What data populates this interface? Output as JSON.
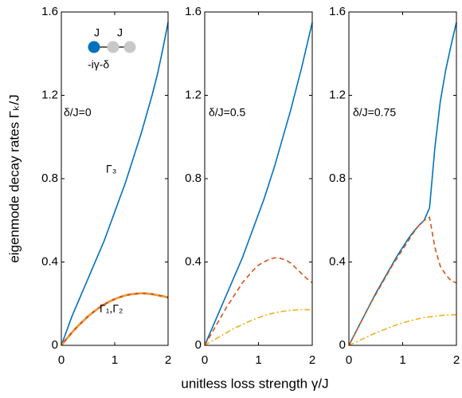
{
  "chart_data": [
    {
      "type": "line",
      "x": [
        0,
        0.1,
        0.2,
        0.3,
        0.4,
        0.5,
        0.6,
        0.7,
        0.8,
        0.9,
        1,
        1.1,
        1.2,
        1.3,
        1.4,
        1.5,
        1.6,
        1.7,
        1.8,
        1.9,
        2
      ],
      "series": [
        {
          "color": "#0072BD",
          "style": "solid",
          "values": [
            0,
            0.07,
            0.14,
            0.2,
            0.26,
            0.32,
            0.38,
            0.44,
            0.5,
            0.57,
            0.64,
            0.71,
            0.78,
            0.86,
            0.94,
            1.02,
            1.11,
            1.2,
            1.3,
            1.42,
            1.55
          ]
        },
        {
          "color": "#D95319",
          "style": "solid",
          "values": [
            0,
            0.032,
            0.062,
            0.09,
            0.115,
            0.139,
            0.16,
            0.179,
            0.196,
            0.21,
            0.222,
            0.232,
            0.24,
            0.245,
            0.248,
            0.25,
            0.249,
            0.246,
            0.241,
            0.236,
            0.23
          ]
        },
        {
          "color": "#EDB120",
          "style": "dashed",
          "values": [
            0,
            0.032,
            0.062,
            0.09,
            0.115,
            0.139,
            0.16,
            0.179,
            0.196,
            0.21,
            0.222,
            0.232,
            0.24,
            0.245,
            0.248,
            0.25,
            0.249,
            0.246,
            0.241,
            0.236,
            0.23
          ]
        }
      ],
      "annotations": [
        "J",
        "J",
        "-iγ-δ",
        "δ/J=0",
        "Γ₃",
        "Γ₁,Γ₂"
      ],
      "xlim": [
        0,
        2
      ],
      "ylim": [
        0,
        1.6
      ],
      "xticks": [
        0,
        1,
        2
      ],
      "yticks": [
        0,
        0.4,
        0.8,
        1.2,
        1.6
      ]
    },
    {
      "type": "line",
      "x": [
        0,
        0.1,
        0.2,
        0.3,
        0.4,
        0.5,
        0.6,
        0.7,
        0.8,
        0.9,
        1,
        1.1,
        1.2,
        1.3,
        1.4,
        1.5,
        1.6,
        1.7,
        1.8,
        1.9,
        2
      ],
      "series": [
        {
          "color": "#0072BD",
          "style": "solid",
          "values": [
            0,
            0.06,
            0.12,
            0.18,
            0.24,
            0.3,
            0.36,
            0.42,
            0.49,
            0.56,
            0.63,
            0.7,
            0.78,
            0.86,
            0.95,
            1.04,
            1.13,
            1.23,
            1.33,
            1.44,
            1.55
          ]
        },
        {
          "color": "#D95319",
          "style": "dashed",
          "values": [
            0,
            0.045,
            0.09,
            0.135,
            0.18,
            0.22,
            0.26,
            0.3,
            0.33,
            0.36,
            0.385,
            0.4,
            0.413,
            0.42,
            0.418,
            0.41,
            0.395,
            0.37,
            0.345,
            0.32,
            0.3
          ]
        },
        {
          "color": "#EDB120",
          "style": "dashdot",
          "values": [
            0,
            0.015,
            0.03,
            0.045,
            0.06,
            0.075,
            0.088,
            0.1,
            0.112,
            0.123,
            0.133,
            0.142,
            0.15,
            0.156,
            0.161,
            0.165,
            0.168,
            0.17,
            0.171,
            0.171,
            0.17
          ]
        }
      ],
      "annotations": [
        "δ/J=0.5"
      ],
      "xlim": [
        0,
        2
      ],
      "ylim": [
        0,
        1.6
      ],
      "xticks": [
        0,
        1,
        2
      ],
      "yticks": [
        0,
        0.4,
        0.8,
        1.2,
        1.6
      ]
    },
    {
      "type": "line",
      "x": [
        0,
        0.1,
        0.2,
        0.3,
        0.4,
        0.5,
        0.6,
        0.7,
        0.8,
        0.9,
        1,
        1.1,
        1.2,
        1.3,
        1.4,
        1.5,
        1.6,
        1.7,
        1.8,
        1.9,
        2
      ],
      "series": [
        {
          "color": "#0072BD",
          "style": "solid",
          "values": [
            0,
            0.05,
            0.1,
            0.15,
            0.2,
            0.25,
            0.295,
            0.34,
            0.385,
            0.43,
            0.47,
            0.51,
            0.545,
            0.575,
            0.6,
            0.66,
            0.95,
            1.17,
            1.32,
            1.44,
            1.55
          ]
        },
        {
          "color": "#D95319",
          "style": "dashed",
          "values": [
            0,
            0.05,
            0.1,
            0.15,
            0.2,
            0.245,
            0.29,
            0.335,
            0.38,
            0.42,
            0.46,
            0.5,
            0.54,
            0.575,
            0.6,
            0.615,
            0.47,
            0.38,
            0.34,
            0.31,
            0.3
          ]
        },
        {
          "color": "#EDB120",
          "style": "dashdot",
          "values": [
            0,
            0.012,
            0.024,
            0.036,
            0.048,
            0.06,
            0.07,
            0.08,
            0.09,
            0.1,
            0.108,
            0.115,
            0.122,
            0.128,
            0.133,
            0.137,
            0.14,
            0.143,
            0.145,
            0.146,
            0.147
          ]
        }
      ],
      "annotations": [
        "δ/J=0.75"
      ],
      "xlim": [
        0,
        2
      ],
      "ylim": [
        0,
        1.6
      ],
      "xticks": [
        0,
        1,
        2
      ],
      "yticks": [
        0,
        0.4,
        0.8,
        1.2,
        1.6
      ]
    }
  ],
  "xlabel": "unitless loss strength γ/J",
  "ylabel": "eigenmode decay rates Γₖ/J"
}
